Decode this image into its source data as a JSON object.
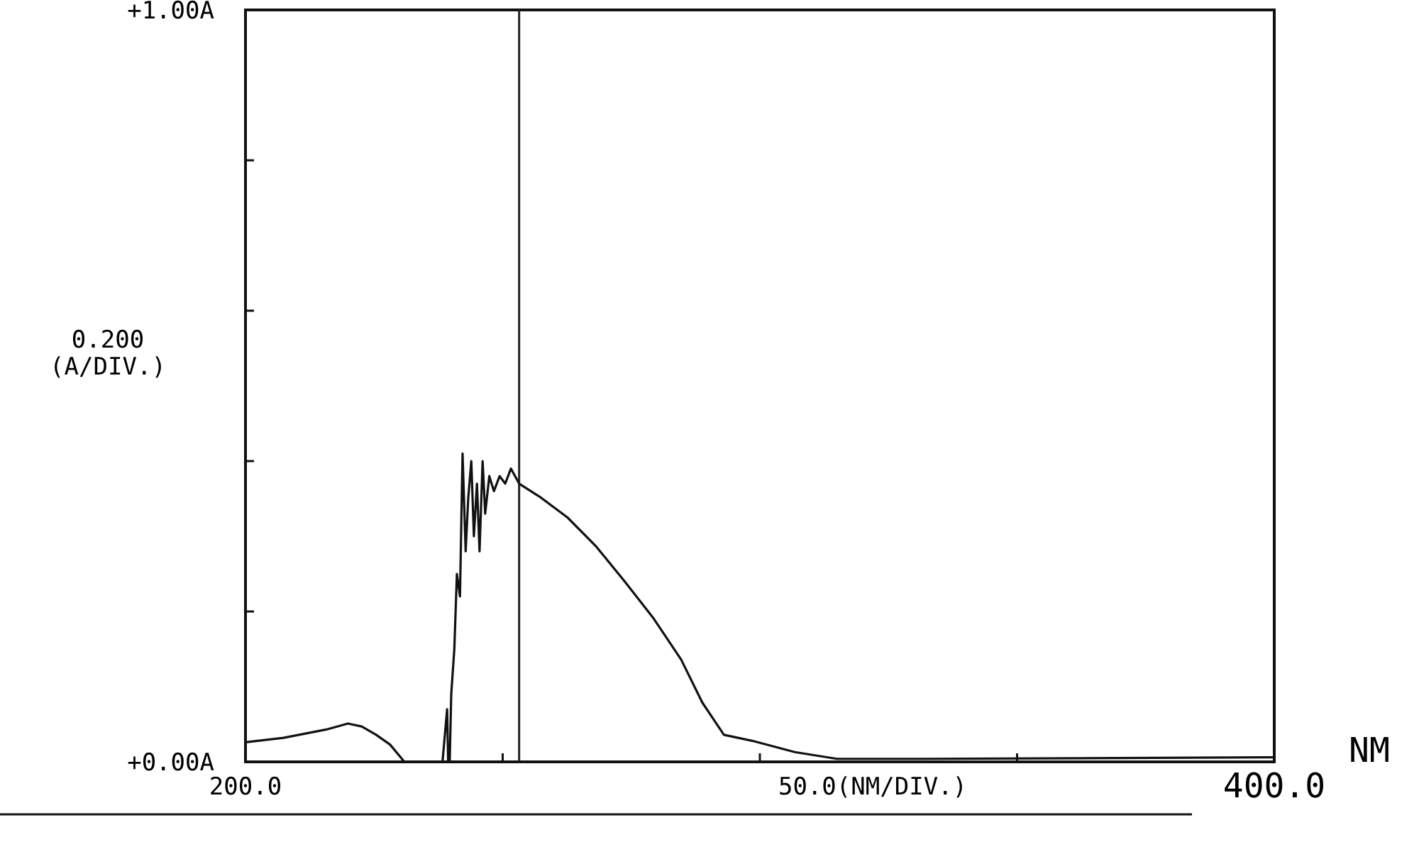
{
  "chart_data": {
    "type": "line",
    "xlabel": "50.0(NM/DIV.)",
    "ylabel": "0.200 (A/DIV.)",
    "annotations": [
      "NM"
    ],
    "xlim": [
      200,
      400
    ],
    "xticks": [
      {
        "value": 200,
        "label": "200.0"
      },
      {
        "value": 250,
        "label": null
      },
      {
        "value": 300,
        "label": null
      },
      {
        "value": 350,
        "label": null
      },
      {
        "value": 400,
        "label": "400.0"
      }
    ],
    "ylim": [
      0,
      1
    ],
    "yticks": [
      {
        "value": 0,
        "label": "+0.00A"
      },
      {
        "value": 0.2,
        "label": null
      },
      {
        "value": 0.4,
        "label": null
      },
      {
        "value": 0.6,
        "label": null
      },
      {
        "value": 0.8,
        "label": null
      },
      {
        "value": 1,
        "label": "+1.00A"
      }
    ],
    "grid": false,
    "line_style": "solid",
    "marker": "none",
    "ref_lines": [
      {
        "axis": "x",
        "value": 253.2,
        "color": "#222222"
      }
    ],
    "series": [
      {
        "color": "#111111",
        "x": [
          200,
          207.4,
          215.7,
          219.9,
          222.6,
          225.4,
          228.1,
          230.9,
          237.8,
          238.3,
          239.2,
          239.4,
          239.7,
          240.0,
          240.6,
          241.1,
          241.7,
          242.2,
          242.8,
          243.3,
          243.9,
          244.4,
          245.0,
          245.5,
          246.1,
          246.6,
          247.4,
          248.3,
          249.4,
          250.5,
          251.6,
          253.2,
          257.1,
          262.6,
          268.1,
          273.7,
          279.2,
          284.7,
          288.8,
          293.0,
          298.5,
          306.8,
          315.0,
          331.6,
          400
        ],
        "values": [
          0.026,
          0.032,
          0.043,
          0.051,
          0.047,
          0.036,
          0.023,
          0,
          0,
          0,
          0.07,
          0,
          0,
          0.09,
          0.15,
          0.25,
          0.22,
          0.41,
          0.28,
          0.35,
          0.4,
          0.3,
          0.37,
          0.28,
          0.4,
          0.33,
          0.38,
          0.36,
          0.38,
          0.37,
          0.39,
          0.37,
          0.353,
          0.325,
          0.287,
          0.24,
          0.192,
          0.136,
          0.079,
          0.036,
          0.028,
          0.013,
          0.004,
          0.004,
          0.006
        ]
      }
    ]
  }
}
